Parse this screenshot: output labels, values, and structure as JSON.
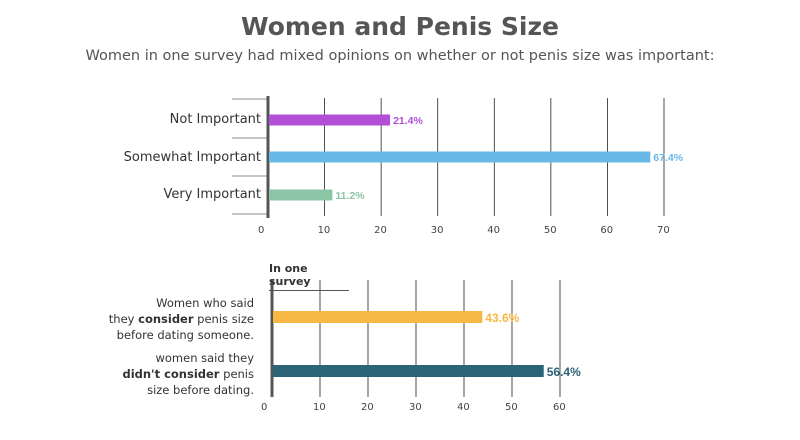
{
  "title": "Women and Penis Size",
  "subtitle": "Women in one survey had mixed opinions on whether or not penis size was important:",
  "chart_data": [
    {
      "type": "bar",
      "orientation": "horizontal",
      "categories": [
        "Not Important",
        "Somewhat Important",
        "Very Important"
      ],
      "values": [
        21.4,
        67.4,
        11.2
      ],
      "value_labels": [
        "21.4%",
        "67.4%",
        "11.2%"
      ],
      "colors": [
        "#b24fd6",
        "#6ab8e6",
        "#8cc5a6"
      ],
      "xlim": [
        0,
        70
      ],
      "xticks": [
        0,
        10,
        20,
        30,
        40,
        50,
        60,
        70
      ],
      "grid": true
    },
    {
      "type": "bar",
      "orientation": "horizontal",
      "title": "In one survey",
      "categories": [
        {
          "pre": "Women who said",
          "line2_pre": "they ",
          "bold": "consider",
          "line2_post": " penis size",
          "post": "before dating someone."
        },
        {
          "pre": "women said they",
          "bold": "didn't consider",
          "line2_post": " penis",
          "post": "size before dating."
        }
      ],
      "values": [
        43.6,
        56.4
      ],
      "value_labels": [
        "43.6%",
        "56.4%"
      ],
      "colors": [
        "#f7b844",
        "#2b6377"
      ],
      "xlim": [
        0,
        60
      ],
      "xticks": [
        0,
        10,
        20,
        30,
        40,
        50,
        60
      ],
      "grid": true
    }
  ]
}
